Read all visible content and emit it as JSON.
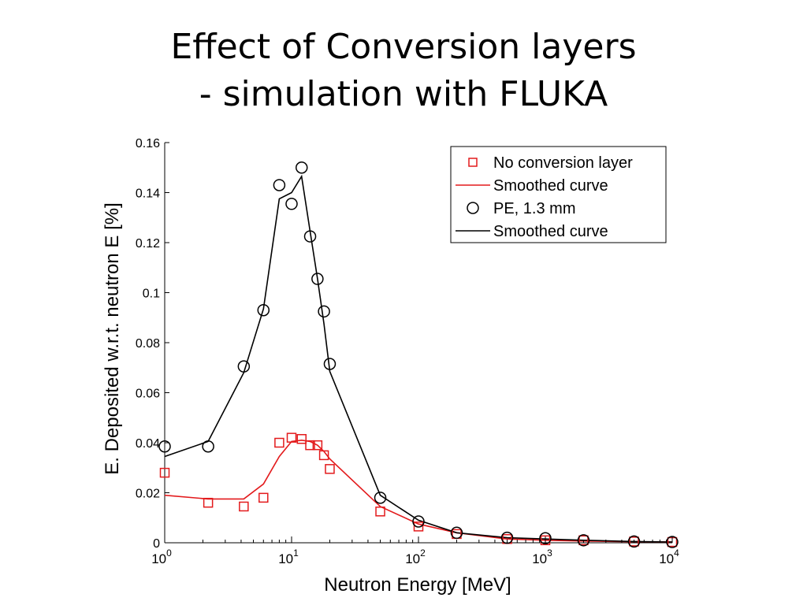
{
  "slide": {
    "title_line1": "Effect of Conversion layers",
    "title_line2": "- simulation with FLUKA"
  },
  "chart_data": {
    "type": "scatter",
    "xlabel": "Neutron Energy [MeV]",
    "ylabel": "E. Deposited w.r.t. neutron E [%]",
    "xscale": "log",
    "xlim": [
      1,
      10000
    ],
    "ylim": [
      0,
      0.16
    ],
    "xticks": [
      {
        "base": "10",
        "exp": "0"
      },
      {
        "base": "10",
        "exp": "1"
      },
      {
        "base": "10",
        "exp": "2"
      },
      {
        "base": "10",
        "exp": "3"
      },
      {
        "base": "10",
        "exp": "4"
      }
    ],
    "yticks": [
      "0",
      "0.02",
      "0.04",
      "0.06",
      "0.08",
      "0.1",
      "0.12",
      "0.14",
      "0.16"
    ],
    "ytick_values": [
      0,
      0.02,
      0.04,
      0.06,
      0.08,
      0.1,
      0.12,
      0.14,
      0.16
    ],
    "grid": false,
    "legend_position": "top-right",
    "series": [
      {
        "name": "No conversion layer",
        "kind": "markers",
        "marker": "square",
        "color": "#e31a1c",
        "points": [
          [
            1,
            0.028
          ],
          [
            2.2,
            0.016
          ],
          [
            4.2,
            0.0145
          ],
          [
            6,
            0.018
          ],
          [
            8,
            0.04
          ],
          [
            10,
            0.042
          ],
          [
            12,
            0.0415
          ],
          [
            14,
            0.039
          ],
          [
            16,
            0.039
          ],
          [
            18,
            0.035
          ],
          [
            20,
            0.0295
          ],
          [
            50,
            0.0125
          ],
          [
            100,
            0.0065
          ],
          [
            200,
            0.0035
          ],
          [
            500,
            0.0015
          ],
          [
            1000,
            0.001
          ],
          [
            2000,
            0.001
          ],
          [
            5000,
            0.0005
          ],
          [
            10000,
            0.0003
          ]
        ]
      },
      {
        "name": "Smoothed curve",
        "kind": "line",
        "color": "#e31a1c",
        "points": [
          [
            1,
            0.019
          ],
          [
            2.2,
            0.0175
          ],
          [
            4.2,
            0.0175
          ],
          [
            6,
            0.0235
          ],
          [
            8,
            0.0345
          ],
          [
            10,
            0.0405
          ],
          [
            12,
            0.041
          ],
          [
            14,
            0.0405
          ],
          [
            16,
            0.039
          ],
          [
            18,
            0.0365
          ],
          [
            20,
            0.0335
          ],
          [
            50,
            0.0145
          ],
          [
            100,
            0.0075
          ],
          [
            200,
            0.004
          ],
          [
            500,
            0.0015
          ],
          [
            1000,
            0.001
          ],
          [
            2000,
            0.0007
          ],
          [
            5000,
            0.0004
          ],
          [
            10000,
            0.0003
          ]
        ]
      },
      {
        "name": "PE, 1.3 mm",
        "kind": "markers",
        "marker": "circle",
        "color": "#000000",
        "points": [
          [
            1,
            0.0385
          ],
          [
            2.2,
            0.0385
          ],
          [
            4.2,
            0.0705
          ],
          [
            6,
            0.093
          ],
          [
            8,
            0.143
          ],
          [
            10,
            0.1355
          ],
          [
            12,
            0.15
          ],
          [
            14,
            0.1225
          ],
          [
            16,
            0.1055
          ],
          [
            18,
            0.0925
          ],
          [
            20,
            0.0715
          ],
          [
            50,
            0.018
          ],
          [
            100,
            0.0085
          ],
          [
            200,
            0.004
          ],
          [
            500,
            0.002
          ],
          [
            1000,
            0.0018
          ],
          [
            2000,
            0.001
          ],
          [
            5000,
            0.0005
          ],
          [
            10000,
            0.0003
          ]
        ]
      },
      {
        "name": "Smoothed curve",
        "kind": "line",
        "color": "#000000",
        "points": [
          [
            1,
            0.0345
          ],
          [
            2.2,
            0.0405
          ],
          [
            4.2,
            0.068
          ],
          [
            6,
            0.0935
          ],
          [
            8,
            0.1375
          ],
          [
            10,
            0.14
          ],
          [
            12,
            0.1465
          ],
          [
            14,
            0.1245
          ],
          [
            16,
            0.1055
          ],
          [
            18,
            0.0875
          ],
          [
            20,
            0.0685
          ],
          [
            50,
            0.019
          ],
          [
            100,
            0.009
          ],
          [
            200,
            0.004
          ],
          [
            500,
            0.002
          ],
          [
            1000,
            0.0015
          ],
          [
            2000,
            0.001
          ],
          [
            5000,
            0.0005
          ],
          [
            10000,
            0.0003
          ]
        ]
      }
    ]
  }
}
